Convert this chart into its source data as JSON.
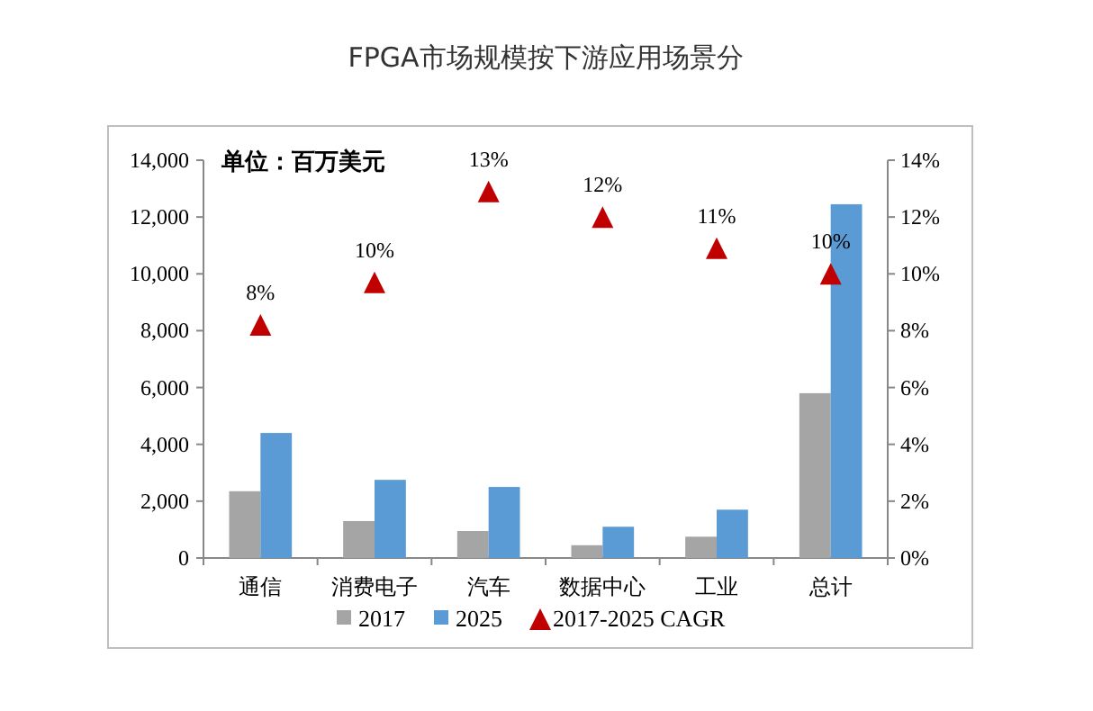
{
  "chart_data": {
    "type": "bar",
    "title": "FPGA市场规模按下游应用场景分",
    "annotations": [
      "单位：百万美元"
    ],
    "categories": [
      "通信",
      "消费电子",
      "汽车",
      "数据中心",
      "工业",
      "总计"
    ],
    "series": [
      {
        "name": "2017",
        "color": "#a5a5a5",
        "values": [
          2350,
          1300,
          950,
          450,
          750,
          5800
        ]
      },
      {
        "name": "2025",
        "color": "#5b9bd5",
        "values": [
          4400,
          2750,
          2500,
          1100,
          1700,
          12450
        ]
      },
      {
        "name": "2017-2025 CAGR",
        "type": "scatter",
        "axis": "y2",
        "marker": "triangle",
        "color": "#c00000",
        "values": [
          8.2,
          9.7,
          12.9,
          12.0,
          10.9,
          10.0
        ],
        "value_labels": [
          "8%",
          "10%",
          "13%",
          "12%",
          "11%",
          "10%"
        ]
      }
    ],
    "ylim": [
      0,
      14000
    ],
    "yticks": [
      {
        "value": 0,
        "label": "0"
      },
      {
        "value": 2000,
        "label": "2,000"
      },
      {
        "value": 4000,
        "label": "4,000"
      },
      {
        "value": 6000,
        "label": "6,000"
      },
      {
        "value": 8000,
        "label": "8,000"
      },
      {
        "value": 10000,
        "label": "10,000"
      },
      {
        "value": 12000,
        "label": "12,000"
      },
      {
        "value": 14000,
        "label": "14,000"
      }
    ],
    "y2lim": [
      0,
      14
    ],
    "y2ticks": [
      {
        "value": 0,
        "label": "0%"
      },
      {
        "value": 2,
        "label": "2%"
      },
      {
        "value": 4,
        "label": "4%"
      },
      {
        "value": 6,
        "label": "6%"
      },
      {
        "value": 8,
        "label": "8%"
      },
      {
        "value": 10,
        "label": "10%"
      },
      {
        "value": 12,
        "label": "12%"
      },
      {
        "value": 14,
        "label": "14%"
      }
    ],
    "legend": "bottom",
    "grid": false
  }
}
